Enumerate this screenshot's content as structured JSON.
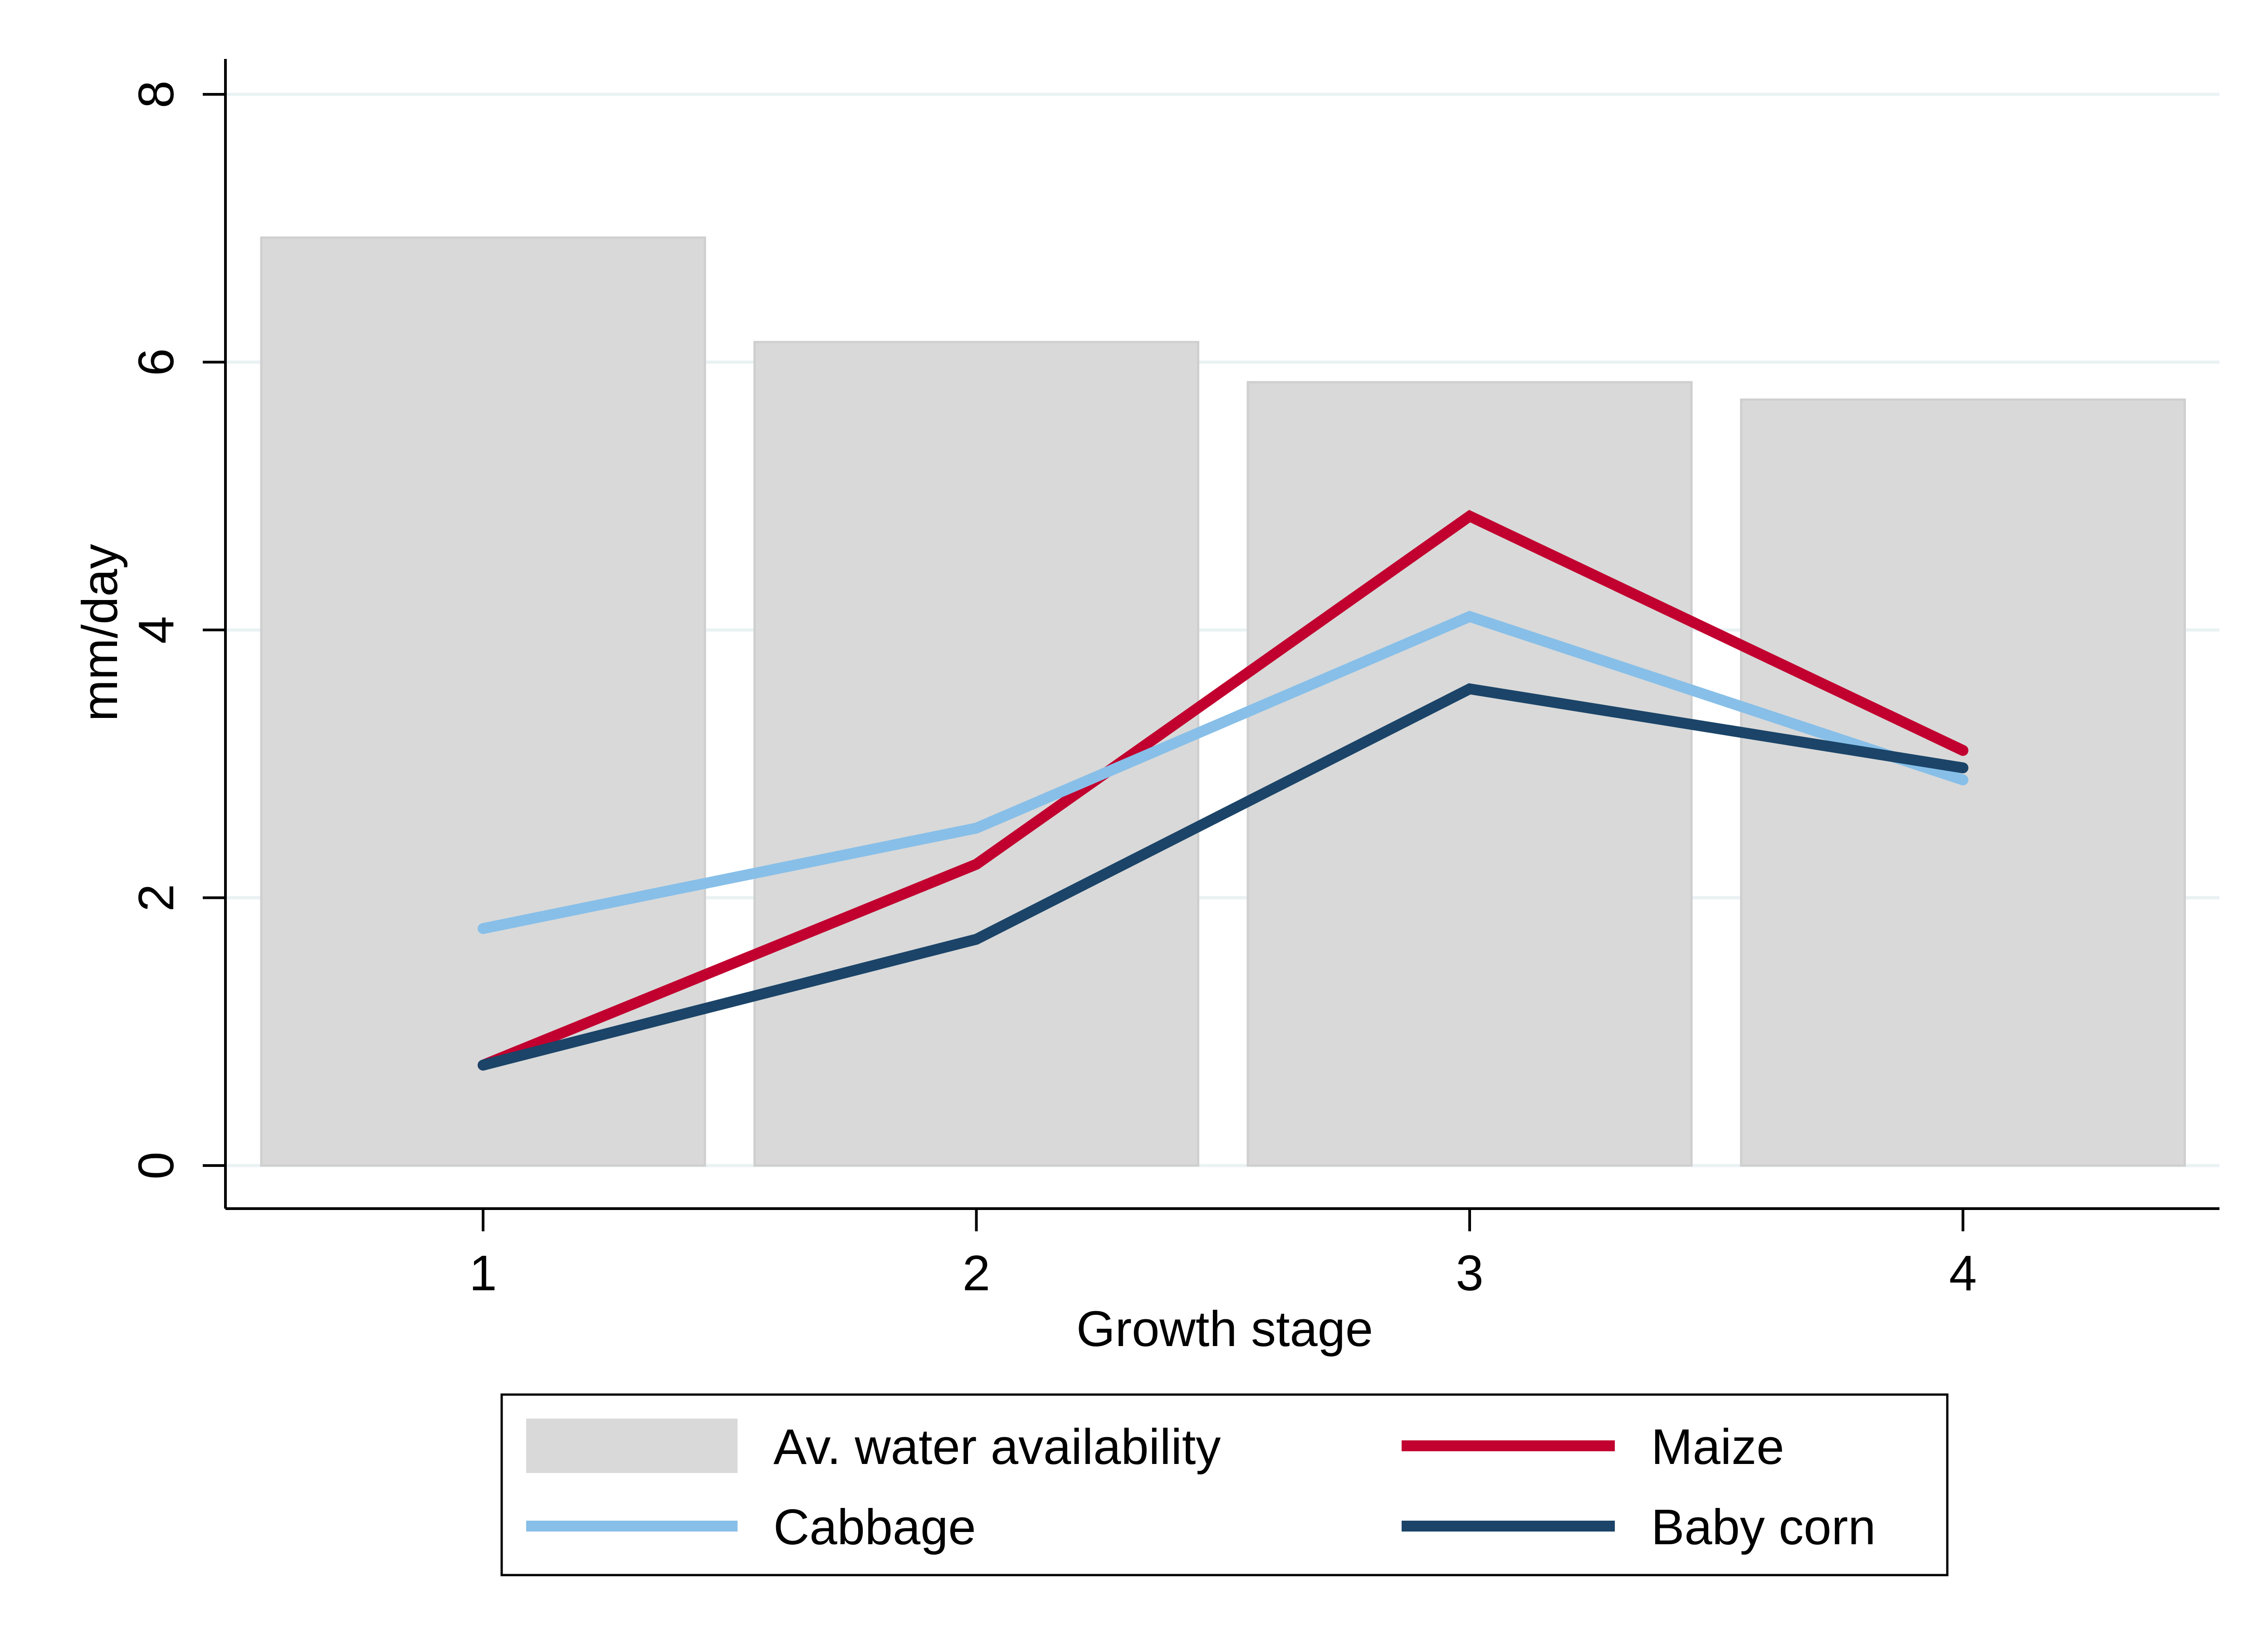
{
  "chart_data": {
    "type": "bar",
    "xlabel": "Growth stage",
    "ylabel": "mm/day",
    "categories": [
      "1",
      "2",
      "3",
      "4"
    ],
    "ylim": [
      0,
      8
    ],
    "yticks": [
      "0",
      "2",
      "4",
      "6",
      "8"
    ],
    "grid": true,
    "legend_position": "bottom",
    "bars": {
      "name": "Av. water availability",
      "values": [
        6.93,
        6.15,
        5.85,
        5.72
      ],
      "color": "#d9d9d9"
    },
    "series": [
      {
        "name": "Maize",
        "type": "line",
        "color": "#c1002f",
        "values": [
          0.75,
          2.25,
          4.85,
          3.1
        ]
      },
      {
        "name": "Cabbage",
        "type": "line",
        "color": "#87bfe8",
        "values": [
          1.77,
          2.52,
          4.1,
          2.88
        ]
      },
      {
        "name": "Baby corn",
        "type": "line",
        "color": "#1b4468",
        "values": [
          0.75,
          1.69,
          3.56,
          2.97
        ]
      }
    ]
  }
}
